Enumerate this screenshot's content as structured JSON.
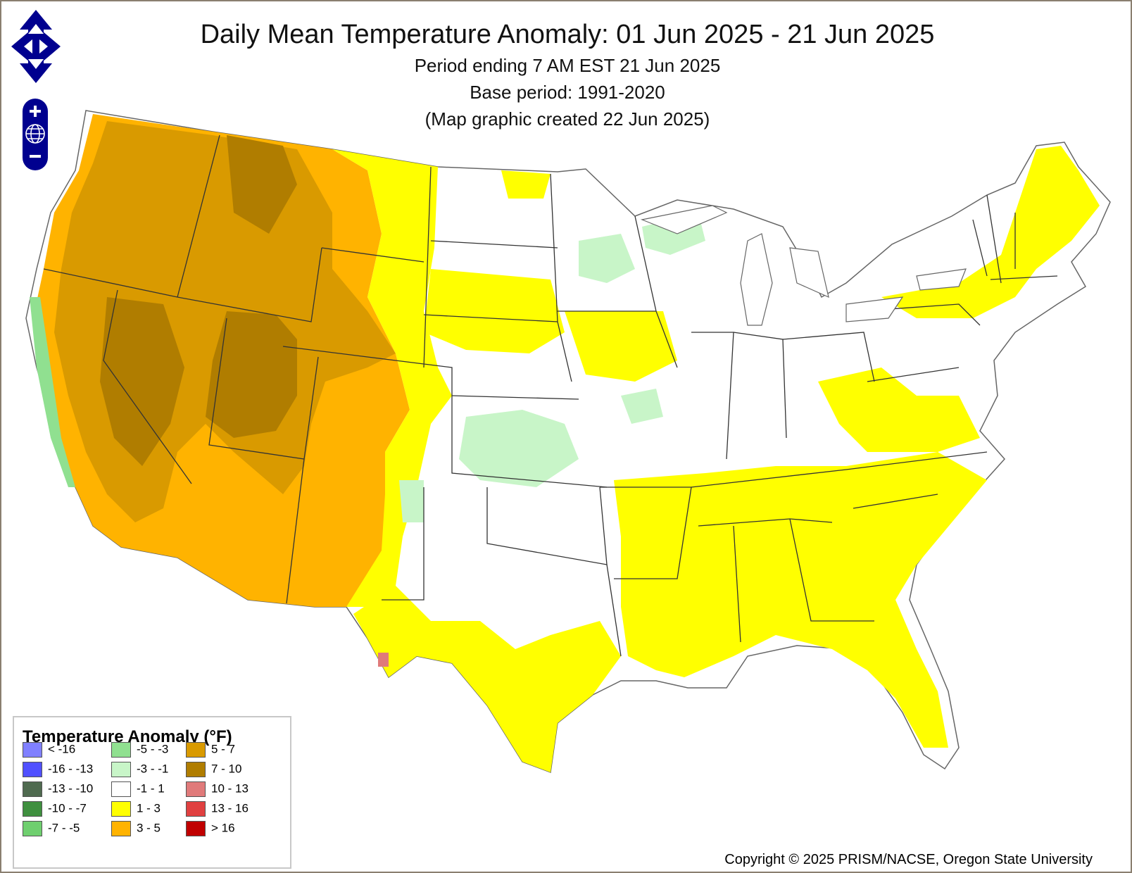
{
  "title": "Daily Mean Temperature Anomaly: 01 Jun 2025 - 21 Jun 2025",
  "subtitle_period": "Period ending 7 AM EST 21 Jun 2025",
  "subtitle_base": "Base period: 1991-2020",
  "subtitle_created": "(Map graphic created 22 Jun 2025)",
  "legend": {
    "title": "Temperature Anomaly (°F)",
    "items": [
      {
        "label": "< -16",
        "color": "#8080ff"
      },
      {
        "label": "-16 - -13",
        "color": "#5050ff"
      },
      {
        "label": "-13 - -10",
        "color": "#4f6a4f"
      },
      {
        "label": "-10 - -7",
        "color": "#3f8f3f"
      },
      {
        "label": "-7 - -5",
        "color": "#6fcf6f"
      },
      {
        "label": "-5 - -3",
        "color": "#90e090"
      },
      {
        "label": "-3 - -1",
        "color": "#c8f5c8"
      },
      {
        "label": "-1 - 1",
        "color": "#ffffff"
      },
      {
        "label": "1 - 3",
        "color": "#ffff00"
      },
      {
        "label": "3 - 5",
        "color": "#ffb300"
      },
      {
        "label": "5 - 7",
        "color": "#d99a00"
      },
      {
        "label": "7 - 10",
        "color": "#b07d00"
      },
      {
        "label": "10 - 13",
        "color": "#e07a7a"
      },
      {
        "label": "13 - 16",
        "color": "#e04040"
      },
      {
        "label": "> 16",
        "color": "#c00000"
      }
    ]
  },
  "copyright": "Copyright © 2025 PRISM/NACSE, Oregon State University",
  "controls": {
    "pan": "pan-arrows-icon",
    "zoom_in": "plus-icon",
    "zoom_reset": "globe-icon",
    "zoom_out": "minus-icon",
    "color": "#00008f"
  }
}
